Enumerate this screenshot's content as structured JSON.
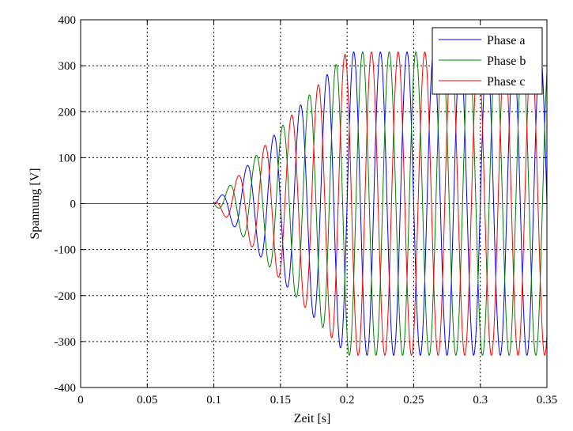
{
  "chart_data": {
    "type": "line",
    "title": "",
    "xlabel": "Zeit [s]",
    "ylabel": "Spannung [V]",
    "xlim": [
      0,
      0.35
    ],
    "ylim": [
      -400,
      400
    ],
    "xticks": [
      "0",
      "0.05",
      "0.1",
      "0.15",
      "0.2",
      "0.25",
      "0.3",
      "0.35"
    ],
    "yticks": [
      "400",
      "300",
      "200",
      "100",
      "0",
      "-100",
      "-200",
      "-300",
      "-400"
    ],
    "grid": true,
    "legend_position": "top-right",
    "signal": {
      "frequency_hz": 50,
      "onset_s": 0.1,
      "ramp_end_s": 0.2,
      "amplitude_v": 330,
      "phase_shift_deg": 120
    },
    "series": [
      {
        "name": "Phase a",
        "color": "#0000ff"
      },
      {
        "name": "Phase b",
        "color": "#008000"
      },
      {
        "name": "Phase c",
        "color": "#ff0000"
      }
    ]
  }
}
